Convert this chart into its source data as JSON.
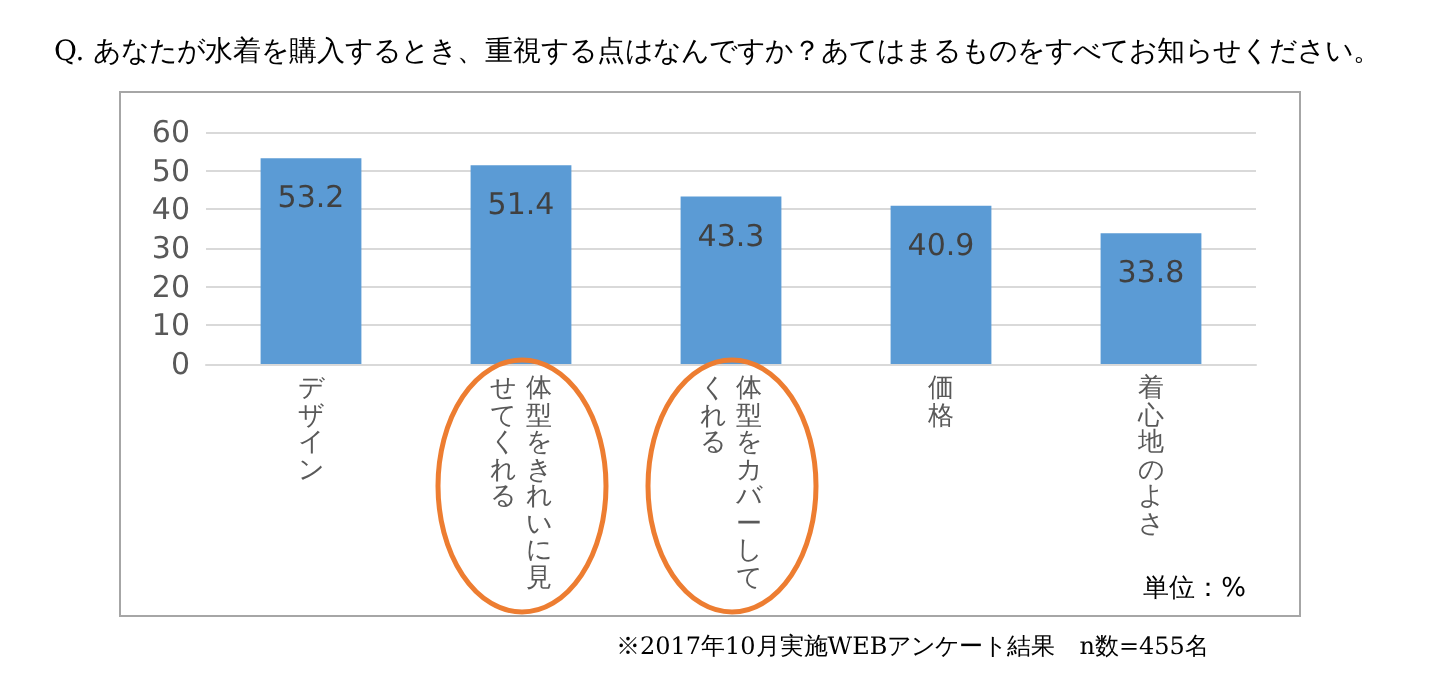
{
  "chart_data": {
    "type": "bar",
    "title": "Q. あなたが水着を購入するとき、重視する点はなんですか？あてはまるものをすべてお知らせください。",
    "categories": [
      "デザイン",
      "体型をきれいに見せてくれる",
      "体型をカバーしてくれる",
      "価格",
      "着心地のよさ"
    ],
    "values": [
      53.2,
      51.4,
      43.3,
      40.9,
      33.8
    ],
    "color": "#5b9bd5",
    "ylim": [
      0,
      60
    ],
    "yticks": [
      0,
      10,
      20,
      30,
      40,
      50,
      60
    ],
    "grid": "y",
    "data_labels": true,
    "annotations": [
      "単位：%",
      "※2017年10月実施WEBアンケート結果　n数=455名"
    ]
  }
}
